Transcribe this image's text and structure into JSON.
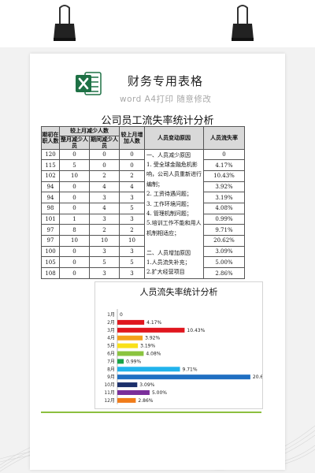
{
  "header": {
    "title": "财务专用表格",
    "subtitle": "word A4打印 随意修改",
    "logo_icon": "excel-icon",
    "logo_color": "#1e7145"
  },
  "document": {
    "title": "公司员工流失率统计分析",
    "table": {
      "headers": {
        "col1": "期初在职人数",
        "group_decrease": "较上月减少人数",
        "col2": "整月减少人员",
        "col3": "期间减少人员",
        "col4": "较上月增加人数",
        "col5": "人员变动原因",
        "col6": "人员流失率"
      },
      "rows": [
        {
          "initial": "120",
          "month_decrease": "0",
          "period_decrease": "0",
          "increase": "0",
          "rate": "0"
        },
        {
          "initial": "115",
          "month_decrease": "5",
          "period_decrease": "0",
          "increase": "0",
          "rate": "4.17%"
        },
        {
          "initial": "102",
          "month_decrease": "10",
          "period_decrease": "2",
          "increase": "2",
          "rate": "10.43%"
        },
        {
          "initial": "94",
          "month_decrease": "0",
          "period_decrease": "4",
          "increase": "4",
          "rate": "3.92%"
        },
        {
          "initial": "94",
          "month_decrease": "0",
          "period_decrease": "3",
          "increase": "3",
          "rate": "3.19%"
        },
        {
          "initial": "98",
          "month_decrease": "0",
          "period_decrease": "4",
          "increase": "5",
          "rate": "4.08%"
        },
        {
          "initial": "101",
          "month_decrease": "1",
          "period_decrease": "3",
          "increase": "3",
          "rate": "0.99%"
        },
        {
          "initial": "97",
          "month_decrease": "8",
          "period_decrease": "2",
          "increase": "2",
          "rate": "9.71%"
        },
        {
          "initial": "97",
          "month_decrease": "10",
          "period_decrease": "10",
          "increase": "10",
          "rate": "20.62%"
        },
        {
          "initial": "100",
          "month_decrease": "0",
          "period_decrease": "3",
          "increase": "3",
          "rate": "3.09%"
        },
        {
          "initial": "105",
          "month_decrease": "0",
          "period_decrease": "5",
          "increase": "5",
          "rate": "5.00%"
        },
        {
          "initial": "108",
          "month_decrease": "0",
          "period_decrease": "3",
          "increase": "3",
          "rate": "2.86%"
        }
      ],
      "reasons": [
        "一、人员减少原因",
        "1. 受全球金融危机影",
        "响，公司人员重新进行",
        "编制；",
        "2. 工资待遇问题；",
        "3. 工作环境问题；",
        "4. 管理机制问题；",
        "5.培训工作不能和用人",
        "机制相适应；",
        "",
        "二、人员增加原因",
        "1.人员流失补充；",
        "2.扩大经营项目"
      ]
    }
  },
  "chart_data": {
    "type": "bar",
    "orientation": "horizontal",
    "title": "人员流失率统计分析",
    "categories": [
      "1月",
      "2月",
      "3月",
      "4月",
      "5月",
      "6月",
      "7月",
      "8月",
      "9月",
      "10月",
      "11月",
      "12月"
    ],
    "values": [
      0,
      4.17,
      10.43,
      3.92,
      3.19,
      4.08,
      0.99,
      9.71,
      20.62,
      3.09,
      5.0,
      2.86
    ],
    "labels": [
      "0",
      "4.17%",
      "10.43%",
      "3.92%",
      "3.19%",
      "4.08%",
      "0.99%",
      "9.71%",
      "20.62%",
      "3.09%",
      "5.00%",
      "2.86%"
    ],
    "colors": [
      "#4472c4",
      "#e0161e",
      "#e0161e",
      "#f4a11b",
      "#f9e11a",
      "#8ac43f",
      "#1aa348",
      "#21b3ec",
      "#1f6fc2",
      "#1b2f6b",
      "#7a2e9a",
      "#f07c1a"
    ],
    "xlim": [
      0,
      21
    ],
    "grid": false,
    "legend": "none"
  }
}
